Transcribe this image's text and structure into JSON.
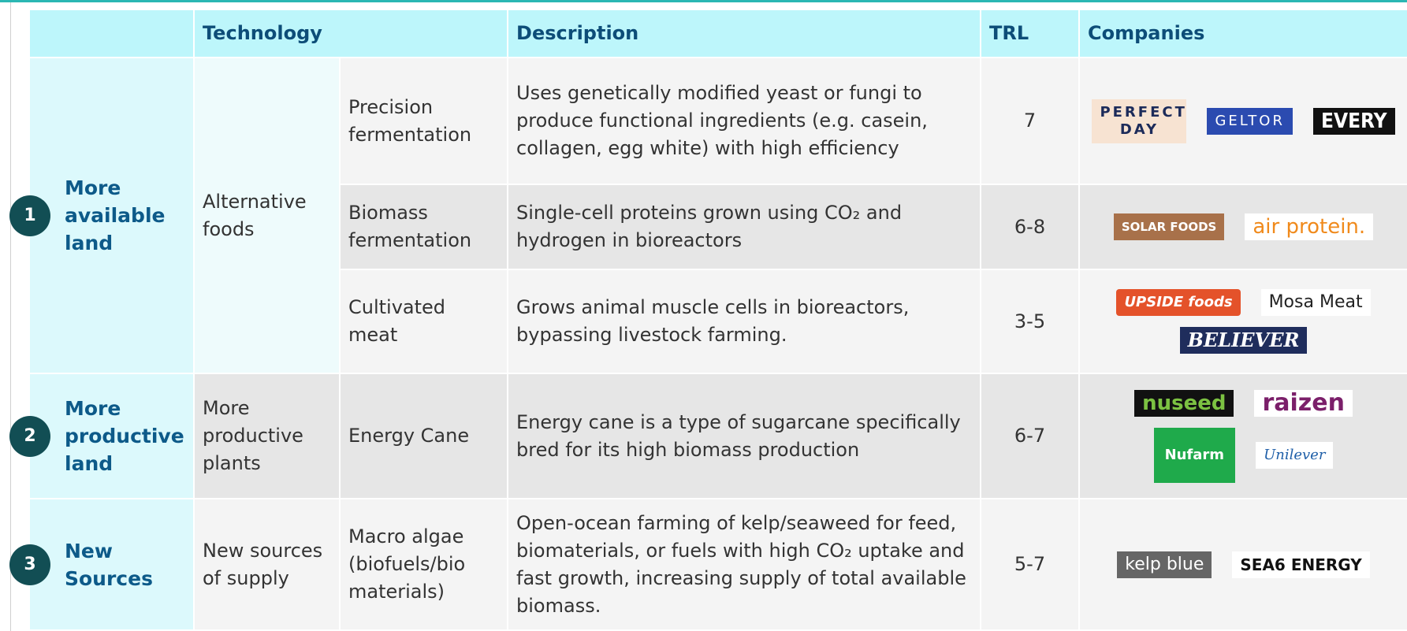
{
  "table": {
    "header": [
      "Technology",
      "Description",
      "TRL",
      "Companies"
    ],
    "groups": [
      {
        "number": "1",
        "label": "More available land",
        "category": "Alternative foods",
        "rows": [
          {
            "technology": "Precision fermentation",
            "description": "Uses genetically modified yeast or fungi to produce functional ingredients (e.g. casein, collagen, egg white) with high efficiency",
            "trl": "7",
            "companies": [
              "PERFECT DAY",
              "GELTOR",
              "EVERY"
            ]
          },
          {
            "technology": "Biomass fermentation",
            "description": "Single-cell proteins grown using CO₂ and hydrogen in bioreactors",
            "trl": "6-8",
            "companies": [
              "SOLAR FOODS",
              "air protein."
            ]
          },
          {
            "technology": "Cultivated meat",
            "description": "Grows animal muscle cells in bioreactors, bypassing livestock farming.",
            "trl": "3-5",
            "companies": [
              "UPSIDE foods",
              "Mosa Meat",
              "BELIEVER"
            ]
          }
        ]
      },
      {
        "number": "2",
        "label": "More productive land",
        "category": "More productive plants",
        "rows": [
          {
            "technology": "Energy Cane",
            "description": "Energy cane is a type of sugarcane specifically bred for its high biomass production",
            "trl": "6-7",
            "companies": [
              "nuseed",
              "raizen",
              "Nufarm",
              "Unilever"
            ]
          }
        ]
      },
      {
        "number": "3",
        "label": "New Sources",
        "category": "New sources of supply",
        "rows": [
          {
            "technology": "Macro algae (biofuels/bio materials)",
            "description": "Open-ocean farming of kelp/seaweed for feed, biomaterials, or fuels with high CO₂ uptake and fast growth, increasing supply of total available biomass.",
            "trl": "5-7",
            "companies": [
              "kelp blue",
              "SEA6 ENERGY"
            ]
          }
        ]
      }
    ]
  }
}
